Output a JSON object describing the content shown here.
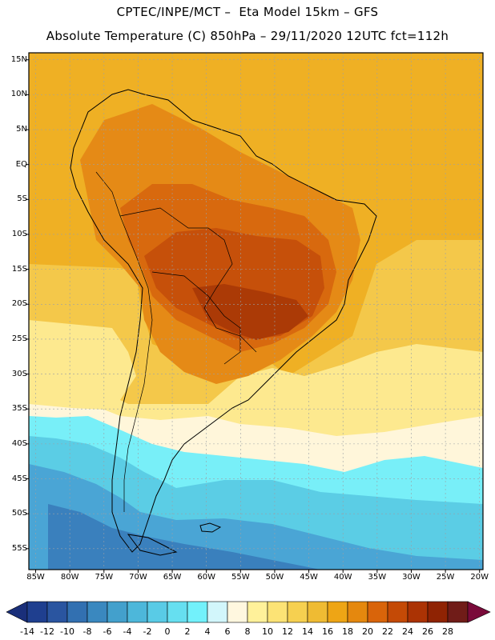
{
  "title": {
    "line1": "CPTEC/INPE/MCT –  Eta Model 15km – GFS",
    "line2": "Absolute Temperature (C) 850hPa – 29/11/2020 12UTC fct=112h"
  },
  "map": {
    "lat_range": [
      -58,
      16
    ],
    "lon_range": [
      -86,
      -19.5
    ],
    "lat_labels": [
      {
        "text": "15N",
        "value": 15
      },
      {
        "text": "10N",
        "value": 10
      },
      {
        "text": "5N",
        "value": 5
      },
      {
        "text": "EQ",
        "value": 0
      },
      {
        "text": "5S",
        "value": -5
      },
      {
        "text": "10S",
        "value": -10
      },
      {
        "text": "15S",
        "value": -15
      },
      {
        "text": "20S",
        "value": -20
      },
      {
        "text": "25S",
        "value": -25
      },
      {
        "text": "30S",
        "value": -30
      },
      {
        "text": "35S",
        "value": -35
      },
      {
        "text": "40S",
        "value": -40
      },
      {
        "text": "45S",
        "value": -45
      },
      {
        "text": "50S",
        "value": -50
      },
      {
        "text": "55S",
        "value": -55
      }
    ],
    "lon_labels": [
      {
        "text": "85W",
        "value": -85
      },
      {
        "text": "80W",
        "value": -80
      },
      {
        "text": "75W",
        "value": -75
      },
      {
        "text": "70W",
        "value": -70
      },
      {
        "text": "65W",
        "value": -65
      },
      {
        "text": "60W",
        "value": -60
      },
      {
        "text": "55W",
        "value": -55
      },
      {
        "text": "50W",
        "value": -50
      },
      {
        "text": "45W",
        "value": -45
      },
      {
        "text": "40W",
        "value": -40
      },
      {
        "text": "35W",
        "value": -35
      },
      {
        "text": "30W",
        "value": -30
      },
      {
        "text": "25W",
        "value": -25
      },
      {
        "text": "20W",
        "value": -20
      }
    ]
  },
  "colorbar": {
    "labels": [
      "-14",
      "-12",
      "-10",
      "-8",
      "-6",
      "-4",
      "-2",
      "0",
      "2",
      "4",
      "6",
      "8",
      "10",
      "12",
      "14",
      "16",
      "18",
      "20",
      "22",
      "24",
      "26",
      "28"
    ],
    "colors": [
      "#1f3f8f",
      "#2a55a0",
      "#3270b1",
      "#3a88bf",
      "#43a0cc",
      "#4db7da",
      "#59cbe6",
      "#66dff0",
      "#72f1fb",
      "#d2f6fb",
      "#fff7df",
      "#fff19a",
      "#fce375",
      "#f6d050",
      "#efbb33",
      "#eea515",
      "#e5880e",
      "#d9640a",
      "#c44a06",
      "#ab3304",
      "#8f2303",
      "#701c18"
    ],
    "low_color": "#1a2f7a",
    "high_color": "#7a0a3a"
  },
  "temperature_zones": [
    {
      "name": "far-south-cold",
      "color": "#3a80bd"
    },
    {
      "name": "south-cold",
      "color": "#4aa5d5"
    },
    {
      "name": "southern-ocean-cool",
      "color": "#5bcde5"
    },
    {
      "name": "cool-band",
      "color": "#78eff8"
    },
    {
      "name": "mild-band",
      "color": "#fff6da"
    },
    {
      "name": "warm-band",
      "color": "#fde98f"
    },
    {
      "name": "ocean-warm",
      "color": "#f4c84a"
    },
    {
      "name": "tropical-base",
      "color": "#efb024"
    },
    {
      "name": "continent-hot",
      "color": "#e58a16"
    },
    {
      "name": "continent-hotter",
      "color": "#d8690e"
    },
    {
      "name": "central-brazil-core",
      "color": "#c6500a"
    },
    {
      "name": "hotspot",
      "color": "#ab3a06"
    }
  ]
}
